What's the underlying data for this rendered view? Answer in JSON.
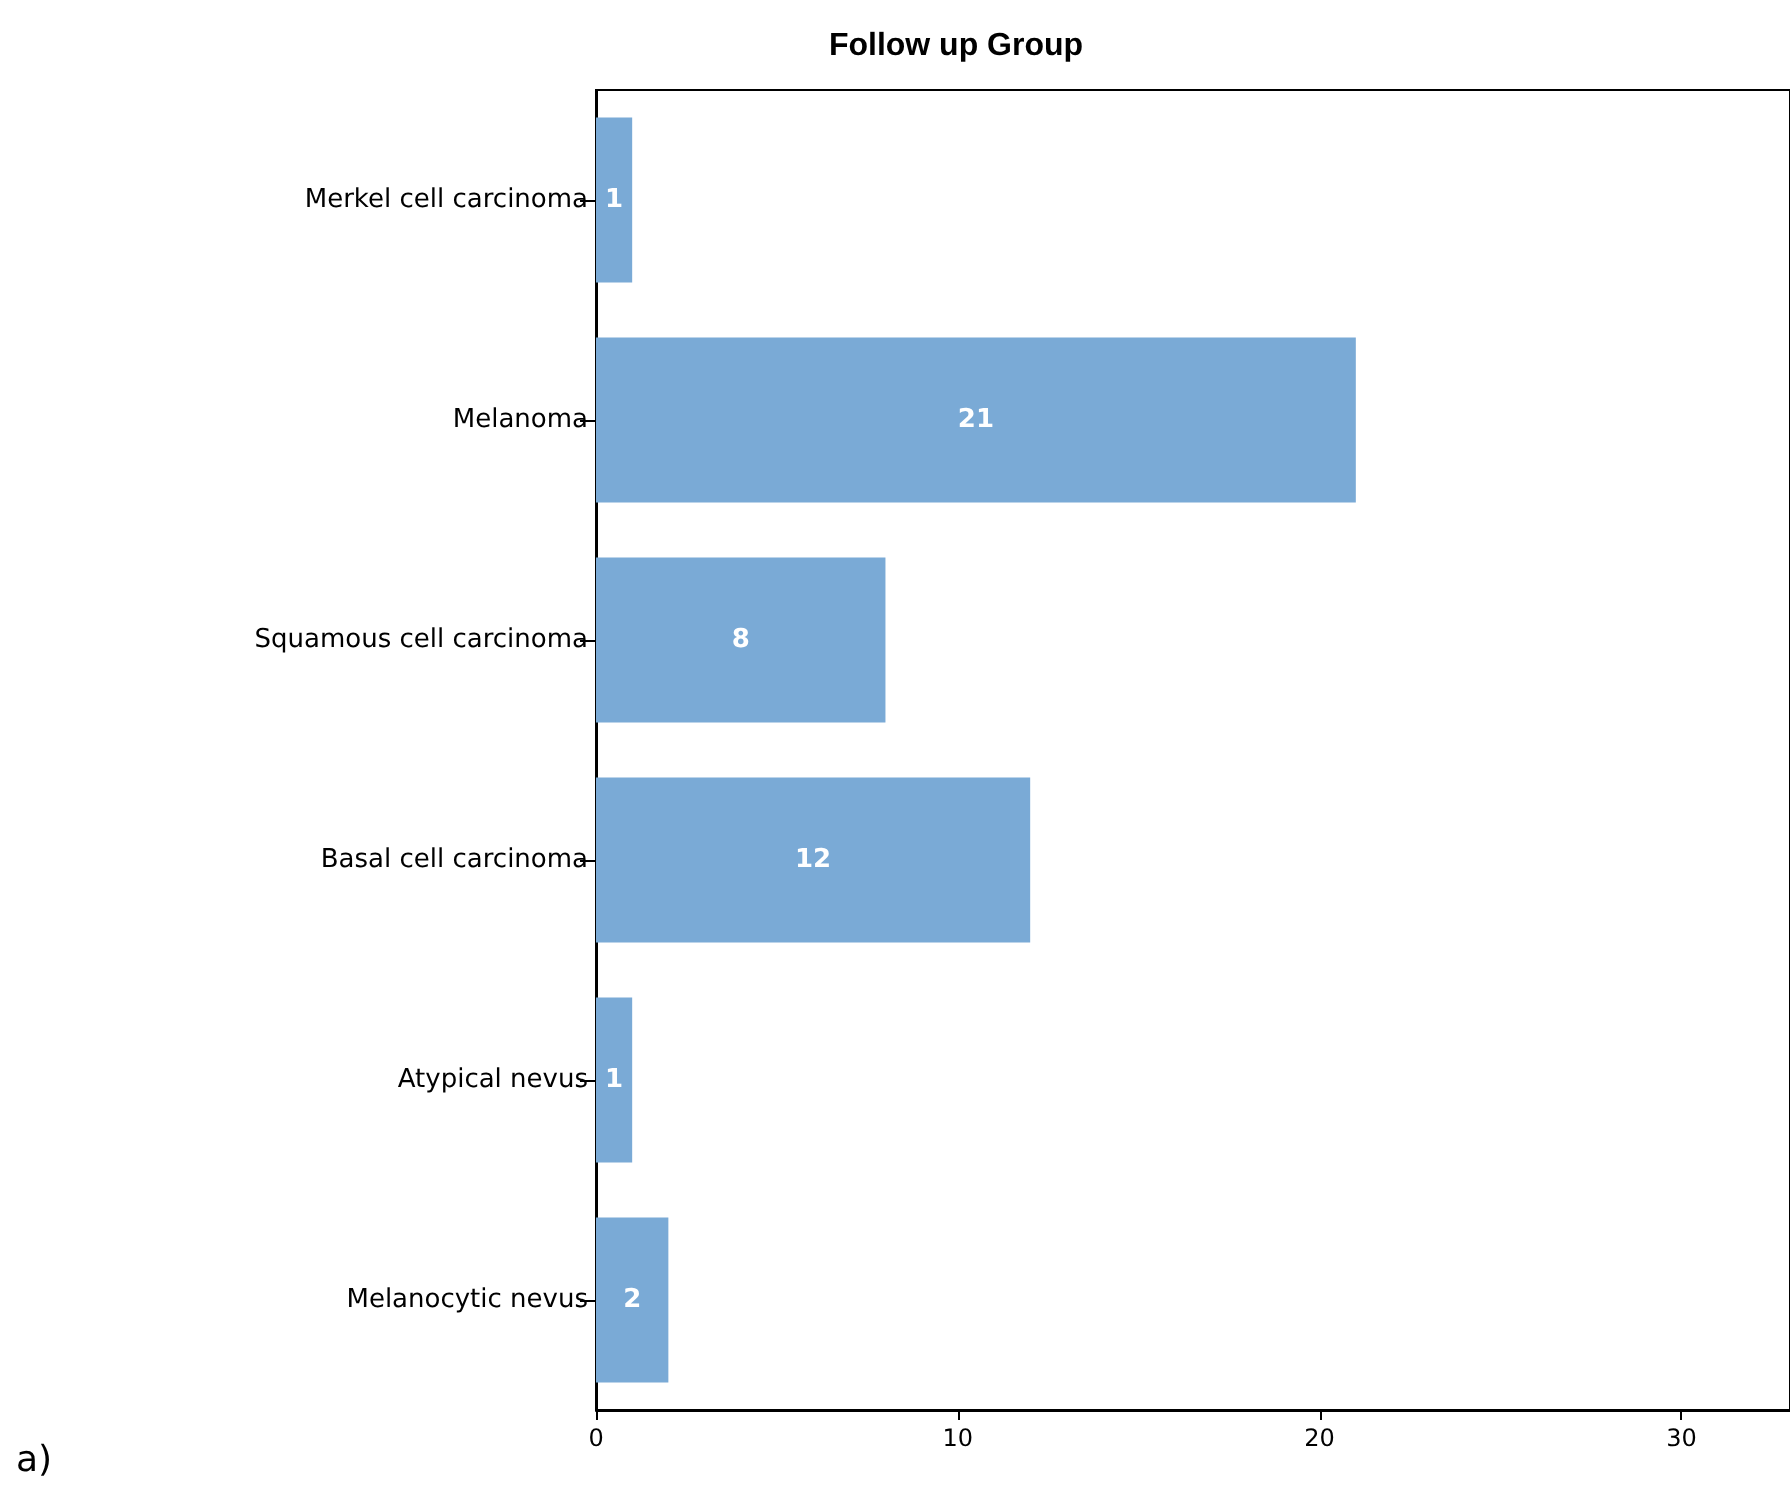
{
  "chart_data": {
    "type": "bar",
    "orientation": "horizontal",
    "title": "Follow up Group",
    "categories": [
      "Merkel cell carcinoma",
      "Melanoma",
      "Squamous cell carcinoma",
      "Basal cell carcinoma",
      "Atypical nevus",
      "Melanocytic nevus"
    ],
    "values": [
      1,
      21,
      8,
      12,
      1,
      2
    ],
    "color": "#7aaad6",
    "xlim": [
      0,
      33
    ],
    "xticks": [
      0,
      10,
      20,
      30
    ],
    "grid": false,
    "data_labels": true,
    "annotations": [
      "a)"
    ]
  }
}
